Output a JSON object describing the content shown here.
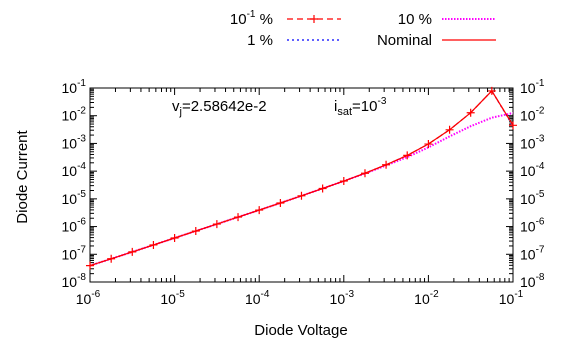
{
  "chart_data": {
    "type": "line",
    "xlabel": "Diode Voltage",
    "ylabel": "Diode Current",
    "x_scale": "log",
    "y_scale": "log",
    "xlim": [
      1e-06,
      0.1
    ],
    "ylim": [
      1e-08,
      0.1
    ],
    "x_ticks": [
      {
        "base": "10",
        "exp": "-6"
      },
      {
        "base": "10",
        "exp": "-5"
      },
      {
        "base": "10",
        "exp": "-4"
      },
      {
        "base": "10",
        "exp": "-3"
      },
      {
        "base": "10",
        "exp": "-2"
      },
      {
        "base": "10",
        "exp": "-1"
      }
    ],
    "y_ticks": [
      {
        "base": "10",
        "exp": "-8"
      },
      {
        "base": "10",
        "exp": "-7"
      },
      {
        "base": "10",
        "exp": "-6"
      },
      {
        "base": "10",
        "exp": "-5"
      },
      {
        "base": "10",
        "exp": "-4"
      },
      {
        "base": "10",
        "exp": "-3"
      },
      {
        "base": "10",
        "exp": "-2"
      },
      {
        "base": "10",
        "exp": "-1"
      }
    ],
    "grid": false,
    "legend_position": "top, above plot",
    "annotations": {
      "vj": {
        "main": "v",
        "sub": "j",
        "tail": "=2.58642e-2"
      },
      "isat": {
        "main": "i",
        "sub": "sat",
        "mid": "=10",
        "sup": "-3"
      }
    },
    "series": [
      {
        "name_base": "10",
        "name_sup": "-1",
        "name_tail": " %",
        "color": "#ff0000",
        "dash": "dash",
        "marker": "plus",
        "x": [
          1e-06,
          1.78e-06,
          3.16e-06,
          5.62e-06,
          1e-05,
          1.78e-05,
          3.16e-05,
          5.62e-05,
          0.0001,
          0.000178,
          0.000316,
          0.000562,
          0.001,
          0.00178,
          0.00316,
          0.00562,
          0.01,
          0.0178,
          0.0316,
          0.0562,
          0.1
        ],
        "y": [
          3.9e-08,
          6.9e-08,
          1.22e-07,
          2.17e-07,
          3.87e-07,
          6.9e-07,
          1.23e-06,
          2.2e-06,
          3.94e-06,
          7.1e-06,
          1.29e-05,
          2.36e-05,
          4.39e-05,
          8.4e-05,
          0.00017,
          0.00037,
          0.00095,
          0.0031,
          0.0128,
          0.0785,
          0.0045
        ]
      },
      {
        "name_base": "1",
        "name_sup": "",
        "name_tail": " %",
        "color": "#0000ff",
        "dash": "dot",
        "marker": "none",
        "x": [
          1e-06,
          1.78e-06,
          3.16e-06,
          5.62e-06,
          1e-05,
          1.78e-05,
          3.16e-05,
          5.62e-05,
          0.0001,
          0.000178,
          0.000316,
          0.000562,
          0.001,
          0.00178,
          0.00316,
          0.00562,
          0.01,
          0.0178,
          0.0316,
          0.0562,
          0.1
        ],
        "y": [
          3.9e-08,
          6.9e-08,
          1.22e-07,
          2.17e-07,
          3.87e-07,
          6.9e-07,
          1.23e-06,
          2.2e-06,
          3.94e-06,
          7.1e-06,
          1.29e-05,
          2.36e-05,
          4.39e-05,
          8.4e-05,
          0.00017,
          0.00037,
          0.00095,
          0.0031,
          0.0128,
          0.0785,
          0.0042
        ]
      },
      {
        "name_base": "10",
        "name_sup": "",
        "name_tail": " %",
        "color": "#ff00ff",
        "dash": "dense-dot",
        "marker": "none",
        "x": [
          1e-06,
          1.78e-06,
          3.16e-06,
          5.62e-06,
          1e-05,
          1.78e-05,
          3.16e-05,
          5.62e-05,
          0.0001,
          0.000178,
          0.000316,
          0.000562,
          0.001,
          0.00178,
          0.00316,
          0.00562,
          0.01,
          0.0178,
          0.0316,
          0.0562,
          0.1
        ],
        "y": [
          3.9e-08,
          6.9e-08,
          1.22e-07,
          2.17e-07,
          3.87e-07,
          6.9e-07,
          1.23e-06,
          2.2e-06,
          3.94e-06,
          7.1e-06,
          1.29e-05,
          2.36e-05,
          4.39e-05,
          8.2e-05,
          0.00016,
          0.00032,
          0.00072,
          0.0018,
          0.0042,
          0.0085,
          0.0125
        ]
      },
      {
        "name_base": "Nominal",
        "name_sup": "",
        "name_tail": "",
        "color": "#ff0000",
        "dash": "solid",
        "marker": "none",
        "x": [
          1e-06,
          1.78e-06,
          3.16e-06,
          5.62e-06,
          1e-05,
          1.78e-05,
          3.16e-05,
          5.62e-05,
          0.0001,
          0.000178,
          0.000316,
          0.000562,
          0.001,
          0.00178,
          0.00316,
          0.00562,
          0.01,
          0.0178,
          0.0316,
          0.0562,
          0.1
        ],
        "y": [
          3.9e-08,
          6.9e-08,
          1.22e-07,
          2.17e-07,
          3.87e-07,
          6.9e-07,
          1.23e-06,
          2.2e-06,
          3.94e-06,
          7.1e-06,
          1.29e-05,
          2.36e-05,
          4.39e-05,
          8.4e-05,
          0.00017,
          0.00037,
          0.00095,
          0.0031,
          0.0128,
          0.0785,
          0.0045
        ]
      }
    ]
  }
}
